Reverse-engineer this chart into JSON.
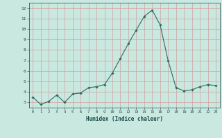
{
  "x": [
    0,
    1,
    2,
    3,
    4,
    5,
    6,
    7,
    8,
    9,
    10,
    11,
    12,
    13,
    14,
    15,
    16,
    17,
    18,
    19,
    20,
    21,
    22,
    23
  ],
  "y": [
    3.5,
    2.8,
    3.1,
    3.7,
    3.0,
    3.8,
    3.9,
    4.4,
    4.5,
    4.7,
    5.8,
    7.2,
    8.6,
    9.9,
    11.2,
    11.8,
    10.4,
    7.0,
    4.4,
    4.1,
    4.2,
    4.5,
    4.7,
    4.6
  ],
  "line_color": "#2d6b5e",
  "marker": "D",
  "marker_size": 1.8,
  "bg_color": "#c8e8e0",
  "grid_color": "#d4a0a0",
  "xlabel": "Humidex (Indice chaleur)",
  "tick_color": "#1a4a4a",
  "xlim": [
    -0.5,
    23.5
  ],
  "ylim": [
    2.5,
    12.5
  ],
  "yticks": [
    3,
    4,
    5,
    6,
    7,
    8,
    9,
    10,
    11,
    12
  ],
  "xticks": [
    0,
    1,
    2,
    3,
    4,
    5,
    6,
    7,
    8,
    9,
    10,
    11,
    12,
    13,
    14,
    15,
    16,
    17,
    18,
    19,
    20,
    21,
    22,
    23
  ]
}
